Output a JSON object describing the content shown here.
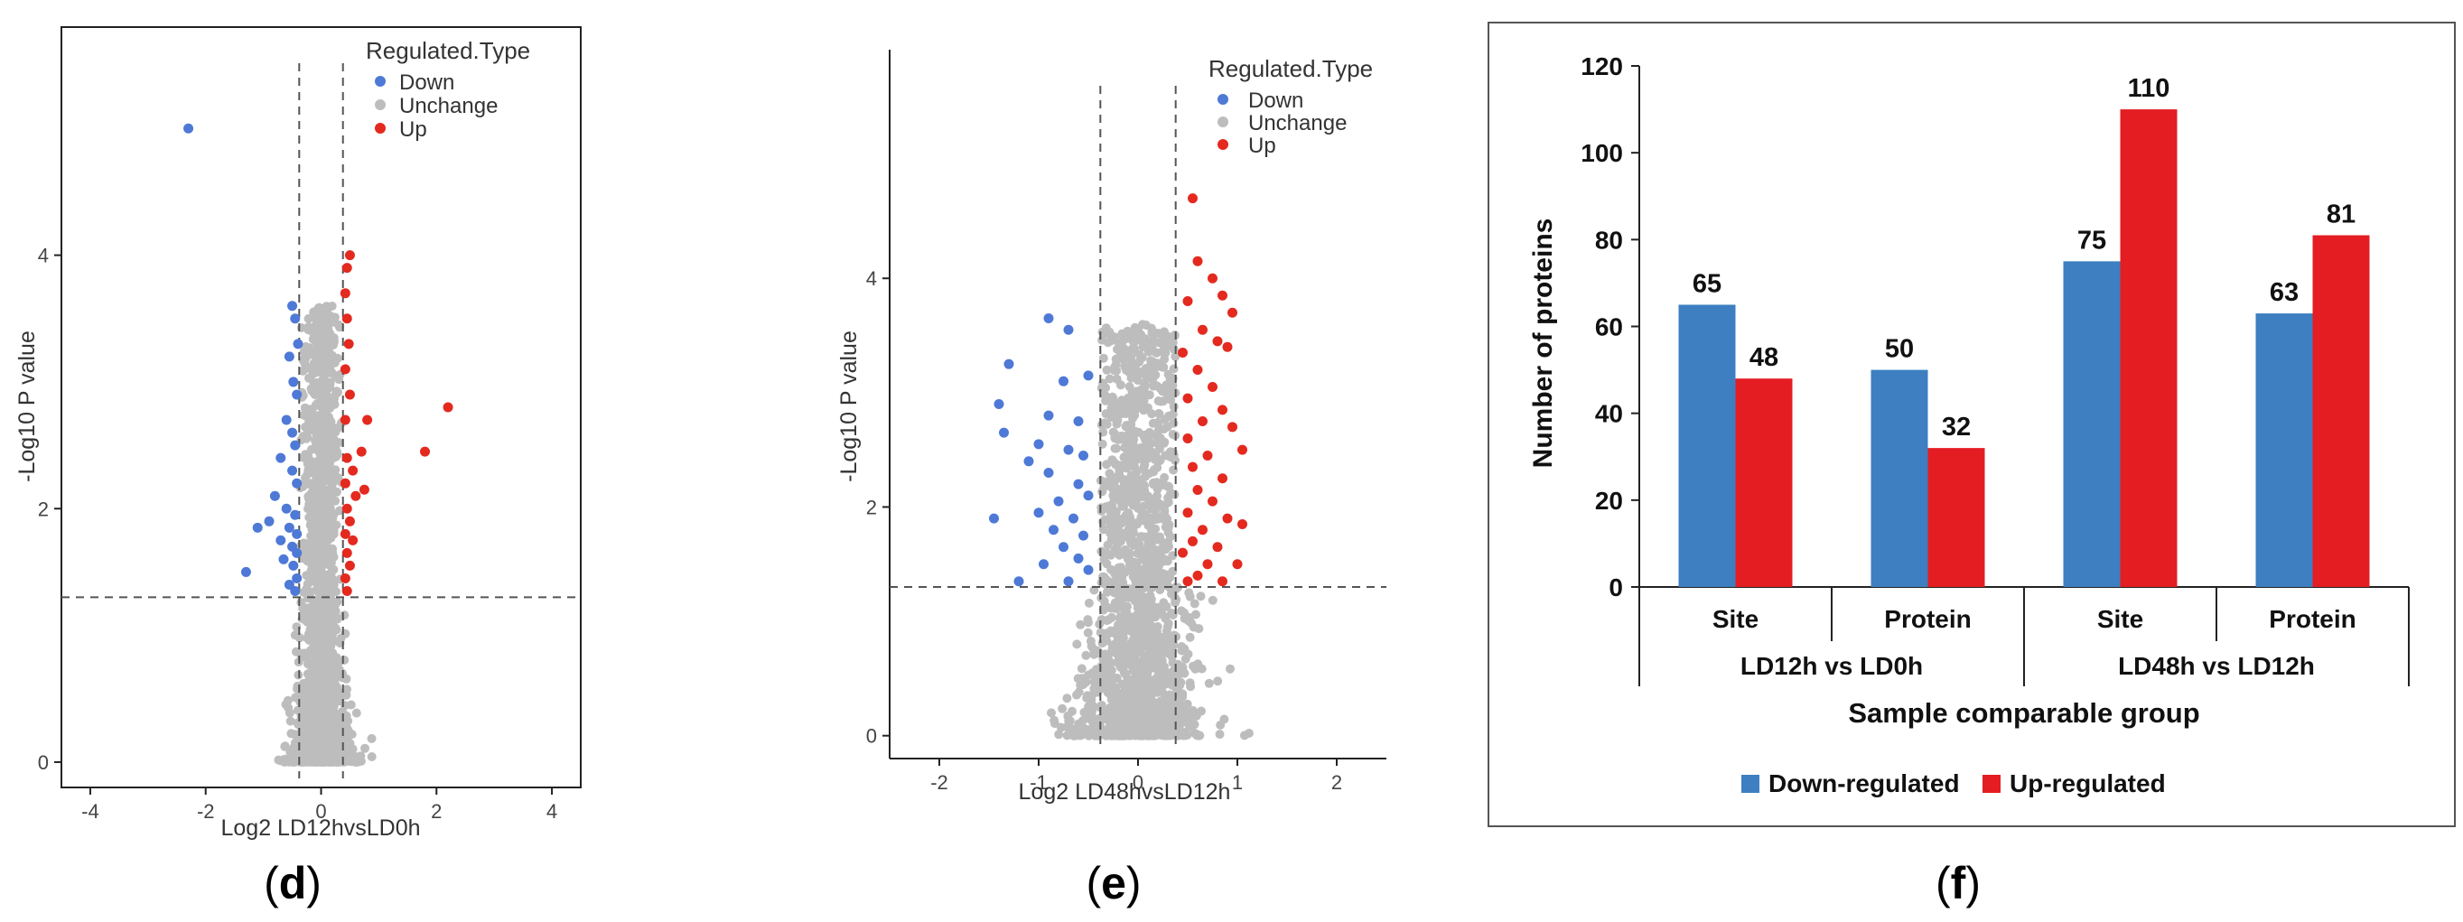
{
  "panels": {
    "d": "(d)",
    "e": "(e)",
    "f": "(f)"
  },
  "colors": {
    "down": "#4e79d6",
    "unchange": "#bdbdbd",
    "up": "#e4291f",
    "bar_down": "#3d7fc0",
    "bar_up": "#e41d22"
  },
  "chart_data": [
    {
      "type": "scatter",
      "panel": "d",
      "xlabel": "Log2 LD12hvsLD0h",
      "ylabel": "-Log10 P value",
      "xlim": [
        -4.5,
        4.5
      ],
      "ylim": [
        -0.2,
        5.8
      ],
      "xticks": [
        -4,
        -2,
        0,
        2,
        4
      ],
      "yticks": [
        0,
        2,
        4
      ],
      "thresholds": {
        "x": [
          -0.379,
          0.379
        ],
        "y": 1.301
      },
      "legend": {
        "title": "Regulated.Type",
        "entries": [
          "Down",
          "Unchange",
          "Up"
        ],
        "placement": "top-right"
      },
      "series": [
        {
          "name": "Down",
          "points": [
            [
              -2.3,
              5.0
            ],
            [
              -0.5,
              3.6
            ],
            [
              -0.45,
              3.5
            ],
            [
              -0.4,
              3.3
            ],
            [
              -0.55,
              3.2
            ],
            [
              -0.48,
              3.0
            ],
            [
              -0.42,
              2.9
            ],
            [
              -0.6,
              2.7
            ],
            [
              -0.5,
              2.6
            ],
            [
              -0.45,
              2.5
            ],
            [
              -0.7,
              2.4
            ],
            [
              -0.5,
              2.3
            ],
            [
              -0.42,
              2.2
            ],
            [
              -0.8,
              2.1
            ],
            [
              -0.6,
              2.0
            ],
            [
              -0.45,
              1.95
            ],
            [
              -0.9,
              1.9
            ],
            [
              -0.55,
              1.85
            ],
            [
              -0.42,
              1.8
            ],
            [
              -1.1,
              1.85
            ],
            [
              -0.7,
              1.75
            ],
            [
              -0.5,
              1.7
            ],
            [
              -0.42,
              1.65
            ],
            [
              -0.65,
              1.6
            ],
            [
              -0.48,
              1.55
            ],
            [
              -1.3,
              1.5
            ],
            [
              -0.42,
              1.45
            ],
            [
              -0.55,
              1.4
            ],
            [
              -0.45,
              1.35
            ]
          ]
        },
        {
          "name": "Up",
          "points": [
            [
              0.5,
              4.0
            ],
            [
              0.45,
              3.9
            ],
            [
              0.42,
              3.7
            ],
            [
              0.45,
              3.5
            ],
            [
              0.48,
              3.3
            ],
            [
              0.42,
              3.1
            ],
            [
              0.5,
              2.9
            ],
            [
              0.8,
              2.7
            ],
            [
              0.42,
              2.7
            ],
            [
              2.2,
              2.8
            ],
            [
              1.8,
              2.45
            ],
            [
              0.7,
              2.45
            ],
            [
              0.45,
              2.4
            ],
            [
              0.55,
              2.3
            ],
            [
              0.42,
              2.2
            ],
            [
              0.75,
              2.15
            ],
            [
              0.6,
              2.1
            ],
            [
              0.45,
              2.0
            ],
            [
              0.5,
              1.9
            ],
            [
              0.42,
              1.8
            ],
            [
              0.55,
              1.75
            ],
            [
              0.45,
              1.65
            ],
            [
              0.5,
              1.55
            ],
            [
              0.42,
              1.45
            ],
            [
              0.45,
              1.35
            ]
          ]
        }
      ]
    },
    {
      "type": "scatter",
      "panel": "e",
      "xlabel": "Log2 LD48hvsLD12h",
      "ylabel": "-Log10 P value",
      "xlim": [
        -2.5,
        2.5
      ],
      "ylim": [
        -0.2,
        6.0
      ],
      "xticks": [
        -2,
        -1,
        0,
        1,
        2
      ],
      "yticks": [
        0,
        2,
        4
      ],
      "thresholds": {
        "x": [
          -0.379,
          0.379
        ],
        "y": 1.301
      },
      "legend": {
        "title": "Regulated.Type",
        "entries": [
          "Down",
          "Unchange",
          "Up"
        ],
        "placement": "top-right"
      },
      "series": [
        {
          "name": "Down",
          "points": [
            [
              -0.9,
              3.65
            ],
            [
              -0.7,
              3.55
            ],
            [
              -1.3,
              3.25
            ],
            [
              -0.75,
              3.1
            ],
            [
              -0.5,
              3.15
            ],
            [
              -1.4,
              2.9
            ],
            [
              -0.9,
              2.8
            ],
            [
              -0.6,
              2.75
            ],
            [
              -1.35,
              2.65
            ],
            [
              -1.0,
              2.55
            ],
            [
              -0.7,
              2.5
            ],
            [
              -0.55,
              2.45
            ],
            [
              -1.1,
              2.4
            ],
            [
              -0.9,
              2.3
            ],
            [
              -0.6,
              2.2
            ],
            [
              -0.5,
              2.1
            ],
            [
              -0.8,
              2.05
            ],
            [
              -1.0,
              1.95
            ],
            [
              -0.65,
              1.9
            ],
            [
              -1.45,
              1.9
            ],
            [
              -0.85,
              1.8
            ],
            [
              -0.55,
              1.75
            ],
            [
              -0.75,
              1.65
            ],
            [
              -0.6,
              1.55
            ],
            [
              -0.95,
              1.5
            ],
            [
              -0.5,
              1.45
            ],
            [
              -1.2,
              1.35
            ],
            [
              -0.7,
              1.35
            ]
          ]
        },
        {
          "name": "Up",
          "points": [
            [
              0.55,
              4.7
            ],
            [
              0.6,
              4.15
            ],
            [
              0.75,
              4.0
            ],
            [
              0.85,
              3.85
            ],
            [
              0.5,
              3.8
            ],
            [
              0.95,
              3.7
            ],
            [
              0.65,
              3.55
            ],
            [
              0.8,
              3.45
            ],
            [
              0.9,
              3.4
            ],
            [
              0.45,
              3.35
            ],
            [
              0.6,
              3.2
            ],
            [
              0.75,
              3.05
            ],
            [
              0.5,
              2.95
            ],
            [
              0.85,
              2.85
            ],
            [
              0.65,
              2.75
            ],
            [
              0.95,
              2.7
            ],
            [
              0.5,
              2.6
            ],
            [
              1.05,
              2.5
            ],
            [
              0.7,
              2.45
            ],
            [
              0.55,
              2.35
            ],
            [
              0.85,
              2.25
            ],
            [
              0.6,
              2.15
            ],
            [
              0.75,
              2.05
            ],
            [
              0.5,
              1.95
            ],
            [
              0.9,
              1.9
            ],
            [
              0.65,
              1.8
            ],
            [
              1.05,
              1.85
            ],
            [
              0.55,
              1.7
            ],
            [
              0.8,
              1.65
            ],
            [
              0.45,
              1.6
            ],
            [
              0.7,
              1.5
            ],
            [
              1.0,
              1.5
            ],
            [
              0.6,
              1.4
            ],
            [
              0.85,
              1.35
            ],
            [
              0.5,
              1.35
            ]
          ]
        }
      ]
    },
    {
      "type": "bar",
      "panel": "f",
      "ylabel": "Number of proteins",
      "xlabel": "Sample comparable group",
      "ylim": [
        0,
        120
      ],
      "yticks": [
        0,
        20,
        40,
        60,
        80,
        100,
        120
      ],
      "groups": [
        "LD12h vs LD0h",
        "LD48h vs LD12h"
      ],
      "categories": [
        "Site",
        "Protein",
        "Site",
        "Protein"
      ],
      "legend": {
        "entries": [
          "Down-regulated",
          "Up-regulated"
        ],
        "placement": "bottom"
      },
      "series": [
        {
          "name": "Down-regulated",
          "values": [
            65,
            50,
            75,
            63
          ]
        },
        {
          "name": "Up-regulated",
          "values": [
            48,
            32,
            110,
            81
          ]
        }
      ]
    }
  ]
}
